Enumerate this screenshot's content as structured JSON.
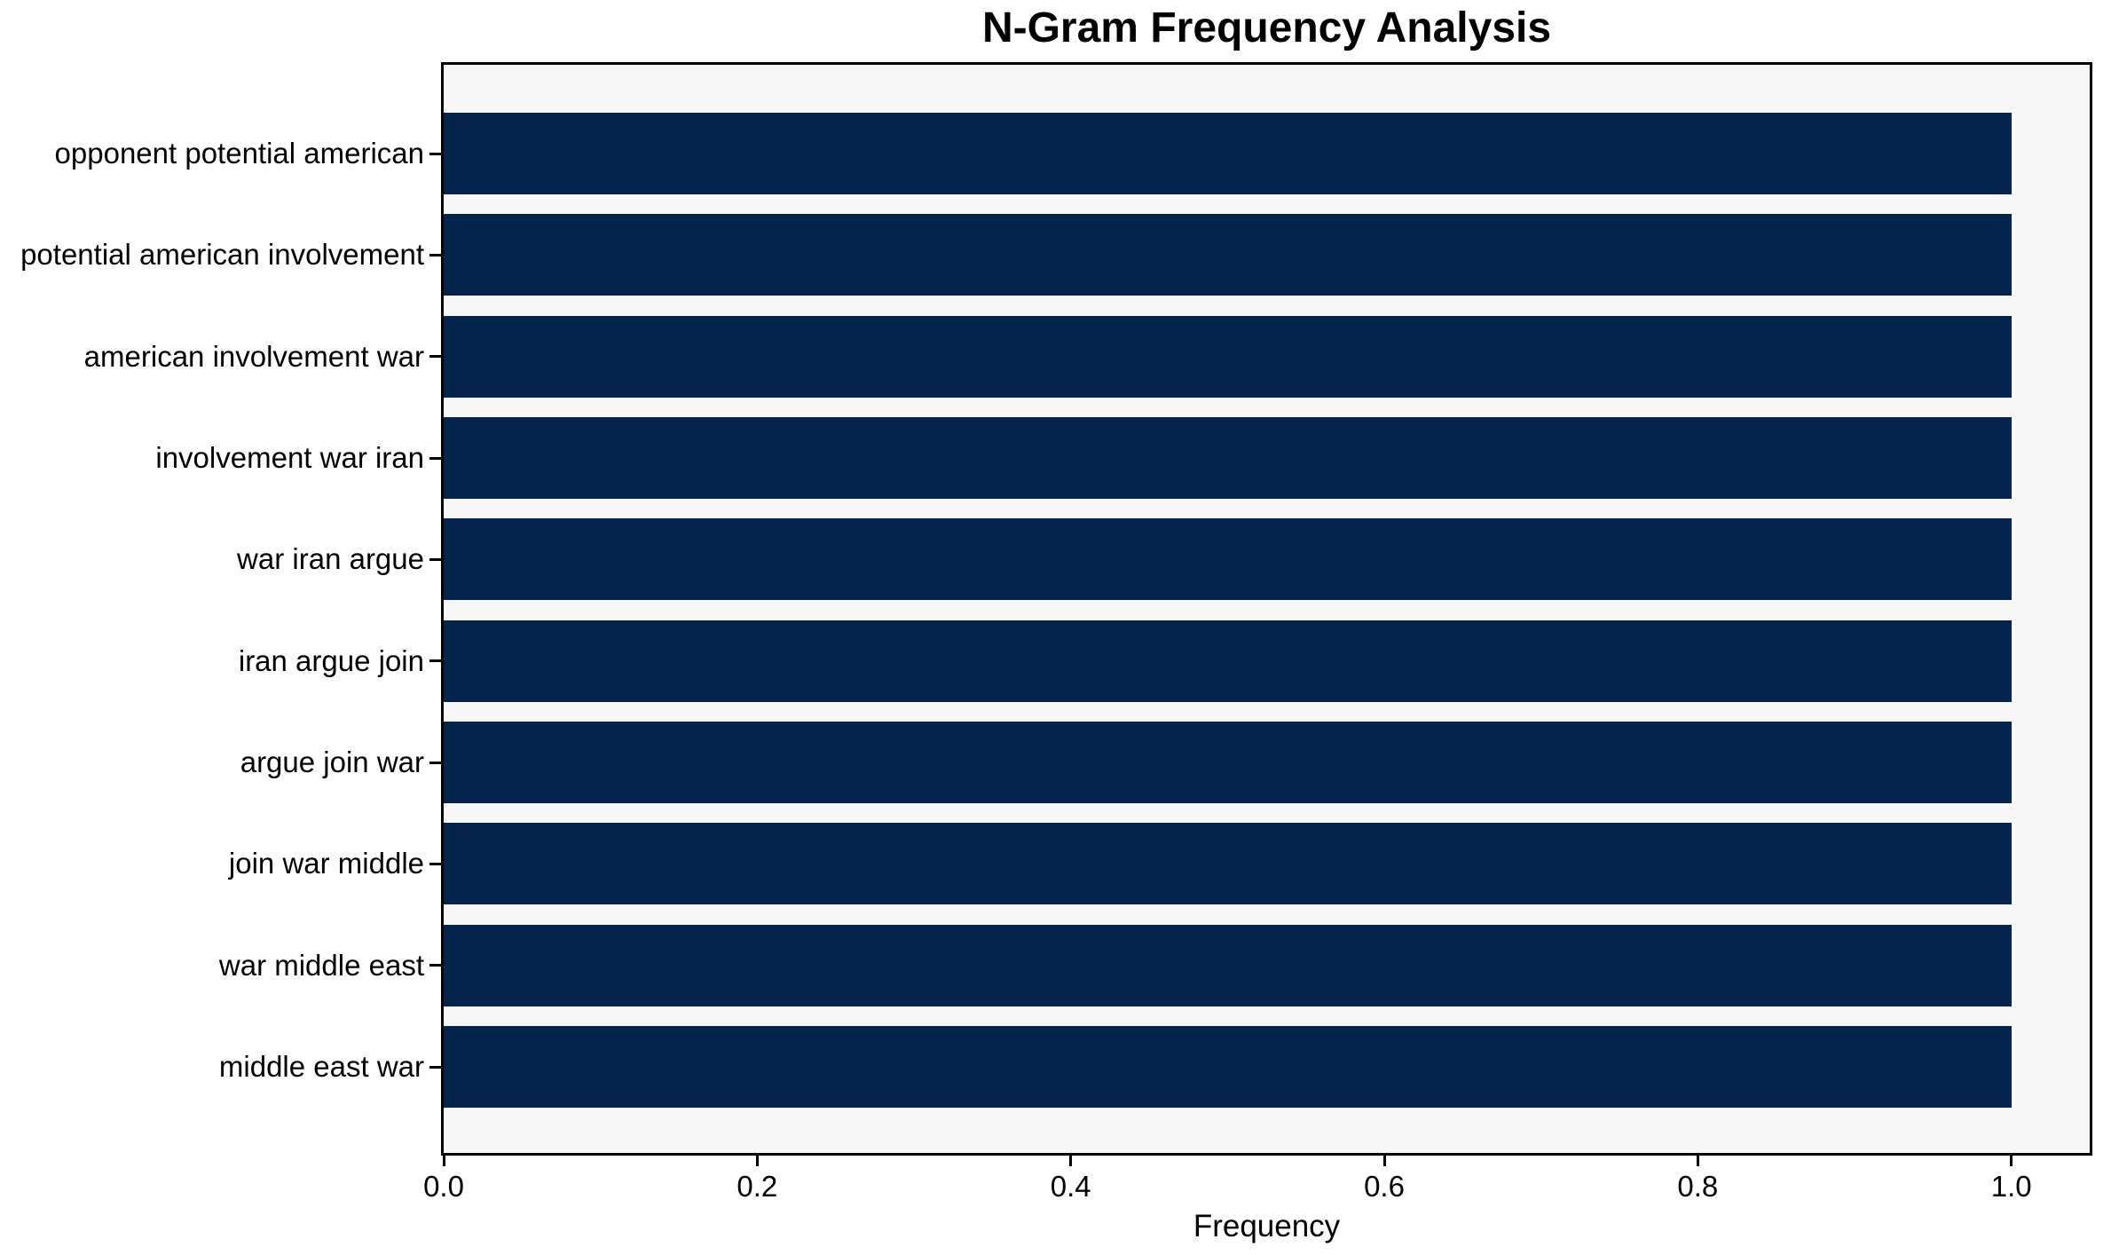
{
  "chart_data": {
    "type": "bar",
    "orientation": "horizontal",
    "title": "N-Gram Frequency Analysis",
    "xlabel": "Frequency",
    "ylabel": "",
    "categories": [
      "opponent potential american",
      "potential american involvement",
      "american involvement war",
      "involvement war iran",
      "war iran argue",
      "iran argue join",
      "argue join war",
      "join war middle",
      "war middle east",
      "middle east war"
    ],
    "values": [
      1.0,
      1.0,
      1.0,
      1.0,
      1.0,
      1.0,
      1.0,
      1.0,
      1.0,
      1.0
    ],
    "x_tick_labels": [
      "0.0",
      "0.2",
      "0.4",
      "0.6",
      "0.8",
      "1.0"
    ],
    "x_tick_values": [
      0.0,
      0.2,
      0.4,
      0.6,
      0.8,
      1.0
    ],
    "xlim": [
      0,
      1.05
    ],
    "grid": false,
    "legend": "none",
    "colors": {
      "bar": "#05244d",
      "plot_background": "#f7f7f7",
      "figure_background": "#ffffff",
      "spine": "#000000",
      "text": "#000000"
    }
  }
}
